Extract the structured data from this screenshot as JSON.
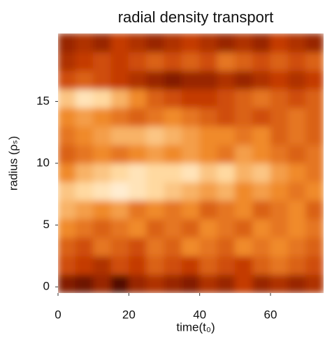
{
  "chart_data": {
    "type": "heatmap",
    "title": "radial density transport",
    "xlabel": "time(t₀)",
    "ylabel": "radius (ρₛ)",
    "xlim": [
      0,
      75
    ],
    "xticks": [
      0,
      20,
      40,
      60
    ],
    "ylim": [
      -0.5,
      20.5
    ],
    "yticks": [
      0,
      5,
      10,
      15
    ],
    "xbins": [
      0,
      5,
      10,
      15,
      20,
      25,
      30,
      35,
      40,
      45,
      50,
      55,
      60,
      65,
      70,
      75
    ],
    "ybins": [
      -0.5,
      1,
      2.5,
      4,
      5.5,
      7,
      8.5,
      10,
      11.5,
      13,
      14.5,
      16,
      17.5,
      19,
      20.5
    ],
    "zlim": [
      0,
      1
    ],
    "colorscale": [
      "#000000",
      "#6e1200",
      "#c43a06",
      "#f08a2c",
      "#ffd9a0",
      "#ffffff"
    ],
    "z": [
      [
        0.25,
        0.2,
        0.3,
        0.15,
        0.3,
        0.35,
        0.3,
        0.25,
        0.35,
        0.3,
        0.4,
        0.3,
        0.35,
        0.3,
        0.35
      ],
      [
        0.45,
        0.4,
        0.35,
        0.45,
        0.4,
        0.5,
        0.45,
        0.4,
        0.5,
        0.45,
        0.4,
        0.5,
        0.55,
        0.5,
        0.45
      ],
      [
        0.5,
        0.45,
        0.55,
        0.5,
        0.45,
        0.55,
        0.5,
        0.6,
        0.55,
        0.5,
        0.6,
        0.55,
        0.6,
        0.55,
        0.5
      ],
      [
        0.6,
        0.55,
        0.5,
        0.55,
        0.6,
        0.5,
        0.55,
        0.5,
        0.6,
        0.55,
        0.5,
        0.6,
        0.55,
        0.6,
        0.55
      ],
      [
        0.7,
        0.65,
        0.6,
        0.65,
        0.55,
        0.6,
        0.55,
        0.6,
        0.5,
        0.55,
        0.6,
        0.5,
        0.55,
        0.6,
        0.5
      ],
      [
        0.75,
        0.8,
        0.85,
        0.9,
        0.85,
        0.8,
        0.75,
        0.7,
        0.65,
        0.7,
        0.6,
        0.65,
        0.6,
        0.55,
        0.6
      ],
      [
        0.6,
        0.7,
        0.75,
        0.8,
        0.85,
        0.8,
        0.8,
        0.85,
        0.75,
        0.8,
        0.7,
        0.75,
        0.65,
        0.6,
        0.55
      ],
      [
        0.5,
        0.55,
        0.6,
        0.55,
        0.6,
        0.65,
        0.6,
        0.65,
        0.6,
        0.55,
        0.65,
        0.6,
        0.55,
        0.5,
        0.55
      ],
      [
        0.55,
        0.6,
        0.65,
        0.7,
        0.7,
        0.75,
        0.7,
        0.65,
        0.6,
        0.6,
        0.55,
        0.6,
        0.5,
        0.55,
        0.5
      ],
      [
        0.6,
        0.65,
        0.6,
        0.55,
        0.5,
        0.55,
        0.6,
        0.55,
        0.5,
        0.45,
        0.5,
        0.45,
        0.5,
        0.55,
        0.5
      ],
      [
        0.75,
        0.85,
        0.8,
        0.7,
        0.6,
        0.5,
        0.45,
        0.4,
        0.4,
        0.45,
        0.5,
        0.55,
        0.5,
        0.45,
        0.5
      ],
      [
        0.45,
        0.5,
        0.45,
        0.4,
        0.35,
        0.3,
        0.25,
        0.3,
        0.3,
        0.35,
        0.3,
        0.35,
        0.4,
        0.35,
        0.4
      ],
      [
        0.35,
        0.4,
        0.45,
        0.4,
        0.45,
        0.5,
        0.45,
        0.5,
        0.45,
        0.55,
        0.5,
        0.45,
        0.5,
        0.45,
        0.5
      ],
      [
        0.3,
        0.35,
        0.3,
        0.4,
        0.35,
        0.3,
        0.35,
        0.4,
        0.35,
        0.3,
        0.35,
        0.3,
        0.4,
        0.35,
        0.3
      ]
    ]
  }
}
